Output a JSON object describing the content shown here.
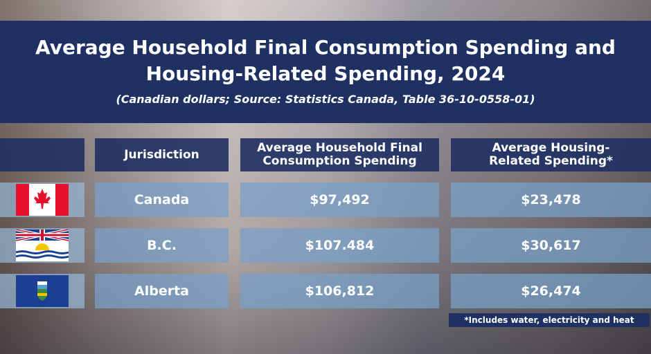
{
  "header": {
    "title": "Average Household Final Consumption Spending and Housing-Related Spending, 2024",
    "subtitle": "(Canadian dollars; Source: Statistics Canada, Table 36-10-0558-01)"
  },
  "table": {
    "columns": [
      "Jurisdiction",
      "Average Household Final Consumption Spending",
      "Average Housing-Related Spending*"
    ],
    "rows": [
      [
        "Canada",
        "$97,492",
        "$23,478"
      ],
      [
        "B.C.",
        "$107.484",
        "$30,617"
      ],
      [
        "Alberta",
        "$106,812",
        "$26,474"
      ]
    ]
  },
  "footnote": "*Includes water, electricity and heat"
}
